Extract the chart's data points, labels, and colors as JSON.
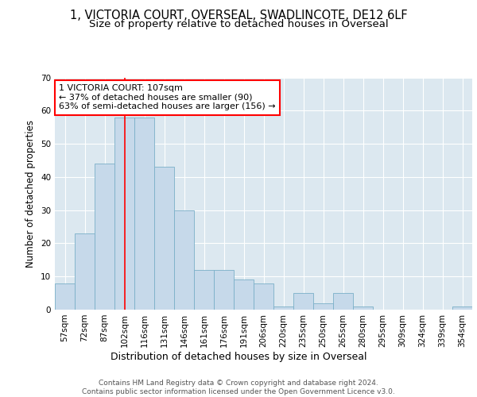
{
  "title1": "1, VICTORIA COURT, OVERSEAL, SWADLINCOTE, DE12 6LF",
  "title2": "Size of property relative to detached houses in Overseal",
  "xlabel": "Distribution of detached houses by size in Overseal",
  "ylabel": "Number of detached properties",
  "bar_labels": [
    "57sqm",
    "72sqm",
    "87sqm",
    "102sqm",
    "116sqm",
    "131sqm",
    "146sqm",
    "161sqm",
    "176sqm",
    "191sqm",
    "206sqm",
    "220sqm",
    "235sqm",
    "250sqm",
    "265sqm",
    "280sqm",
    "295sqm",
    "309sqm",
    "324sqm",
    "339sqm",
    "354sqm"
  ],
  "bar_values": [
    8,
    23,
    44,
    58,
    58,
    43,
    30,
    12,
    12,
    9,
    8,
    1,
    5,
    2,
    5,
    1,
    0,
    0,
    0,
    0,
    1
  ],
  "bar_color": "#c6d9ea",
  "bar_edge_color": "#7aafc8",
  "annotation_text": "1 VICTORIA COURT: 107sqm\n← 37% of detached houses are smaller (90)\n63% of semi-detached houses are larger (156) →",
  "annotation_box_color": "white",
  "annotation_box_edge_color": "red",
  "vline_color": "red",
  "vline_x_index": 3,
  "ylim": [
    0,
    70
  ],
  "yticks": [
    0,
    10,
    20,
    30,
    40,
    50,
    60,
    70
  ],
  "plot_background": "#dce8f0",
  "footer_text": "Contains HM Land Registry data © Crown copyright and database right 2024.\nContains public sector information licensed under the Open Government Licence v3.0.",
  "title1_fontsize": 10.5,
  "title2_fontsize": 9.5,
  "xlabel_fontsize": 9,
  "ylabel_fontsize": 8.5,
  "tick_fontsize": 7.5,
  "annotation_fontsize": 8,
  "footer_fontsize": 6.5
}
